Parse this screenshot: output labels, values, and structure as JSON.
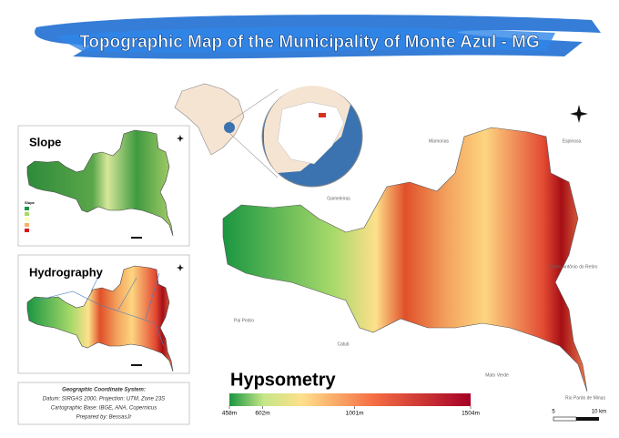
{
  "title": "Topographic Map of the Municipality of Monte Azul - MG",
  "slope": {
    "title": "Slope",
    "legend_title": "Slope"
  },
  "hydrography": {
    "title": "Hydrography"
  },
  "info": {
    "lines": [
      "Geographic Coordinate System:",
      "Datum: SIRGAS 2000, Projection: UTM, Zone 23S",
      "Cartographic Base: IBGE, ANA, Copernicus",
      "Prepared by: BessasJr"
    ]
  },
  "places": [
    "Mamonas",
    "Espinosa",
    "Gameleiras",
    "Santo Antônio do Retiro",
    "Pai Pedro",
    "Catuti",
    "Mato Verde",
    "Rio Pardo de Minas"
  ],
  "hypsometry": {
    "title": "Hypsometry",
    "ticks": [
      {
        "value": 458,
        "label": "458m"
      },
      {
        "value": 602,
        "label": "602m"
      },
      {
        "value": 1001,
        "label": "1001m"
      },
      {
        "value": 1504,
        "label": "1504m"
      }
    ]
  },
  "scale_bar": {
    "labels": [
      "5",
      "10 km"
    ]
  }
}
